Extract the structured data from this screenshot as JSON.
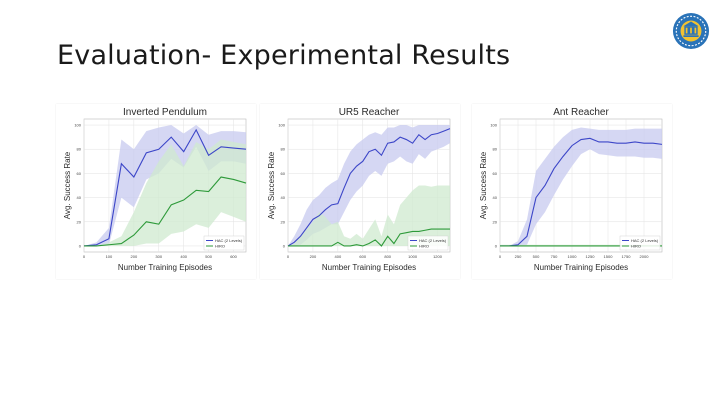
{
  "slide": {
    "title": "Evaluation- Experimental Results",
    "colors": {
      "hac": "#3c46c8",
      "hac_band": "#c7c9ef",
      "hiro": "#2e9a3a",
      "hiro_band": "#cfe9cf"
    }
  },
  "chart_data": [
    {
      "type": "line",
      "title": "Inverted Pendulum",
      "xlabel": "Number Training Episodes",
      "ylabel": "Avg. Success Rate",
      "xlim": [
        0,
        650
      ],
      "ylim": [
        -5,
        105
      ],
      "xticks": [
        0,
        100,
        200,
        300,
        400,
        500,
        600
      ],
      "yticks": [
        0,
        20,
        40,
        60,
        80,
        100
      ],
      "grid": true,
      "legend_position": "lower-right",
      "series": [
        {
          "name": "HAC (2 Levels)",
          "color": "#3c46c8",
          "x": [
            0,
            50,
            100,
            150,
            200,
            250,
            300,
            350,
            400,
            450,
            500,
            550,
            600,
            650
          ],
          "y": [
            0,
            1,
            6,
            68,
            57,
            77,
            80,
            90,
            78,
            96,
            75,
            82,
            81,
            80
          ],
          "lower": [
            0,
            0,
            1,
            40,
            32,
            55,
            60,
            72,
            65,
            82,
            62,
            70,
            70,
            68
          ],
          "upper": [
            0,
            3,
            15,
            88,
            80,
            95,
            98,
            100,
            93,
            100,
            92,
            95,
            95,
            94
          ]
        },
        {
          "name": "HIRO",
          "color": "#2e9a3a",
          "x": [
            0,
            50,
            100,
            150,
            200,
            250,
            300,
            350,
            400,
            450,
            500,
            550,
            600,
            650
          ],
          "y": [
            0,
            0,
            1,
            2,
            9,
            20,
            18,
            34,
            38,
            46,
            45,
            57,
            55,
            52
          ],
          "lower": [
            0,
            0,
            0,
            0,
            0,
            2,
            2,
            10,
            12,
            18,
            15,
            28,
            24,
            20
          ],
          "upper": [
            0,
            0,
            3,
            8,
            28,
            52,
            70,
            84,
            66,
            86,
            80,
            88,
            86,
            84
          ]
        }
      ]
    },
    {
      "type": "line",
      "title": "UR5 Reacher",
      "xlabel": "Number Training Episodes",
      "ylabel": "Avg. Success Rate",
      "xlim": [
        0,
        1300
      ],
      "ylim": [
        -5,
        105
      ],
      "xticks": [
        0,
        200,
        400,
        600,
        800,
        1000,
        1200
      ],
      "yticks": [
        0,
        20,
        40,
        60,
        80,
        100
      ],
      "grid": true,
      "legend_position": "lower-right",
      "series": [
        {
          "name": "HAC (2 Levels)",
          "color": "#3c46c8",
          "x": [
            0,
            50,
            100,
            150,
            200,
            250,
            300,
            350,
            400,
            450,
            500,
            550,
            600,
            650,
            700,
            750,
            800,
            850,
            900,
            950,
            1000,
            1050,
            1100,
            1150,
            1200,
            1250,
            1300
          ],
          "y": [
            0,
            3,
            8,
            15,
            22,
            25,
            30,
            34,
            35,
            48,
            60,
            66,
            70,
            78,
            80,
            75,
            85,
            86,
            90,
            88,
            85,
            92,
            88,
            92,
            93,
            95,
            97
          ],
          "lower": [
            0,
            0,
            1,
            5,
            10,
            12,
            15,
            18,
            18,
            28,
            38,
            45,
            50,
            58,
            62,
            58,
            68,
            70,
            74,
            70,
            68,
            76,
            72,
            78,
            80,
            82,
            85
          ],
          "upper": [
            0,
            8,
            18,
            30,
            38,
            42,
            48,
            52,
            55,
            68,
            78,
            84,
            88,
            92,
            94,
            92,
            98,
            98,
            100,
            100,
            98,
            100,
            100,
            100,
            100,
            100,
            100
          ]
        },
        {
          "name": "HIRO",
          "color": "#2e9a3a",
          "x": [
            0,
            50,
            100,
            150,
            200,
            250,
            300,
            350,
            400,
            450,
            500,
            550,
            600,
            650,
            700,
            750,
            800,
            850,
            900,
            950,
            1000,
            1050,
            1100,
            1150,
            1200,
            1250,
            1300
          ],
          "y": [
            0,
            0,
            0,
            0,
            0,
            0,
            0,
            0,
            3,
            0,
            0,
            1,
            0,
            2,
            5,
            0,
            8,
            2,
            10,
            11,
            12,
            12,
            13,
            14,
            14,
            14,
            14
          ],
          "lower": [
            0,
            0,
            0,
            0,
            0,
            0,
            0,
            0,
            0,
            0,
            0,
            0,
            0,
            0,
            0,
            0,
            0,
            0,
            0,
            0,
            0,
            0,
            0,
            0,
            0,
            0,
            0
          ],
          "upper": [
            0,
            2,
            8,
            14,
            20,
            28,
            24,
            18,
            20,
            8,
            6,
            10,
            6,
            14,
            22,
            8,
            26,
            18,
            34,
            40,
            46,
            50,
            50,
            49,
            50,
            50,
            50
          ]
        }
      ]
    },
    {
      "type": "line",
      "title": "Ant Reacher",
      "xlabel": "Number Training Episodes",
      "ylabel": "Avg. Success Rate",
      "xlim": [
        0,
        2250
      ],
      "ylim": [
        -5,
        105
      ],
      "xticks": [
        0,
        250,
        500,
        750,
        1000,
        1250,
        1500,
        1750,
        2000
      ],
      "xtick_labels": [
        "0",
        "250",
        "500",
        "750",
        "1000",
        "1250",
        "1500",
        "1750",
        "2000"
      ],
      "yticks": [
        0,
        20,
        40,
        60,
        80,
        100
      ],
      "grid": true,
      "legend_position": "lower-right",
      "series": [
        {
          "name": "HAC (2 Levels)",
          "color": "#3c46c8",
          "x": [
            0,
            125,
            250,
            375,
            500,
            625,
            750,
            875,
            1000,
            1125,
            1250,
            1375,
            1500,
            1625,
            1750,
            1875,
            2000,
            2125,
            2250
          ],
          "y": [
            0,
            0,
            1,
            8,
            40,
            50,
            64,
            74,
            83,
            88,
            89,
            86,
            86,
            85,
            85,
            86,
            85,
            85,
            84
          ],
          "lower": [
            0,
            0,
            0,
            1,
            18,
            28,
            42,
            55,
            66,
            76,
            80,
            76,
            75,
            74,
            74,
            74,
            73,
            73,
            72
          ],
          "upper": [
            0,
            0,
            4,
            22,
            62,
            72,
            82,
            90,
            96,
            98,
            97,
            96,
            96,
            96,
            96,
            97,
            97,
            97,
            97
          ]
        },
        {
          "name": "HIRO",
          "color": "#2e9a3a",
          "x": [
            0,
            250,
            500,
            750,
            1000,
            1250,
            1500,
            1750,
            2000,
            2250
          ],
          "y": [
            0,
            0,
            0,
            0,
            0,
            0,
            0,
            0,
            0,
            0
          ],
          "lower": [
            0,
            0,
            0,
            0,
            0,
            0,
            0,
            0,
            0,
            0
          ],
          "upper": [
            1,
            1,
            1,
            1,
            1,
            1,
            1,
            1,
            1,
            1
          ]
        }
      ]
    }
  ]
}
